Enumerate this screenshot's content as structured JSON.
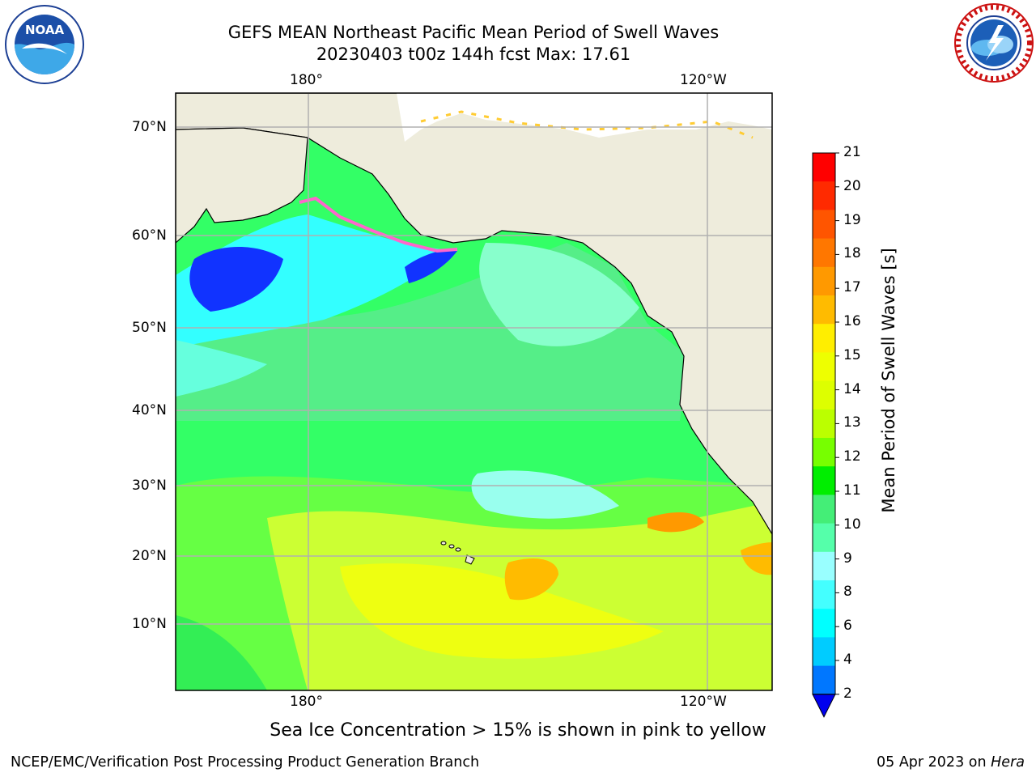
{
  "header": {
    "title_line1": "GEFS MEAN Northeast Pacific Mean Period of Swell Waves",
    "title_line2": "20230403 t00z 144h fcst   Max: 17.61"
  },
  "logos": {
    "left": {
      "icon": "noaa-logo",
      "text": "NOAA",
      "ring_text": "NATIONAL OCEANIC AND ATMOSPHERIC ADMINISTRATION · U.S. DEPARTMENT OF COMMERCE"
    },
    "right": {
      "icon": "nws-logo",
      "ring_text": "NATIONAL WEATHER SERVICE"
    }
  },
  "map": {
    "lon_labels_top": [
      "180°",
      "120°W"
    ],
    "lon_labels_bottom": [
      "180°",
      "120°W"
    ],
    "lat_labels": [
      "70°N",
      "60°N",
      "50°N",
      "40°N",
      "30°N",
      "20°N",
      "10°N"
    ],
    "colors": {
      "land": "#eeecdc",
      "ocean_default": "#33ff88",
      "grid": "#b0b0b0"
    }
  },
  "colorbar": {
    "label": "Mean Period of Swell Waves [s]",
    "ticks": [
      "21",
      "20",
      "19",
      "18",
      "17",
      "16",
      "15",
      "14",
      "13",
      "12",
      "11",
      "10",
      "9",
      "8",
      "6",
      "4",
      "2"
    ],
    "colors_top_to_bottom": [
      "#ff0000",
      "#ff2a00",
      "#ff5500",
      "#ff7700",
      "#ff9900",
      "#ffbb00",
      "#ffee00",
      "#eeff00",
      "#ddff00",
      "#bbff00",
      "#77ff00",
      "#00ee00",
      "#44ee77",
      "#55ffaa",
      "#99ffff",
      "#44ffff",
      "#00ffff",
      "#00ccff",
      "#0077ff"
    ],
    "under_color": "#0000ee"
  },
  "caption": "Sea Ice Concentration > 15% is shown in pink to yellow",
  "footer": {
    "left": "NCEP/EMC/Verification Post Processing Product Generation Branch",
    "right_date": "05 Apr 2023 on ",
    "right_machine": "Hera"
  }
}
